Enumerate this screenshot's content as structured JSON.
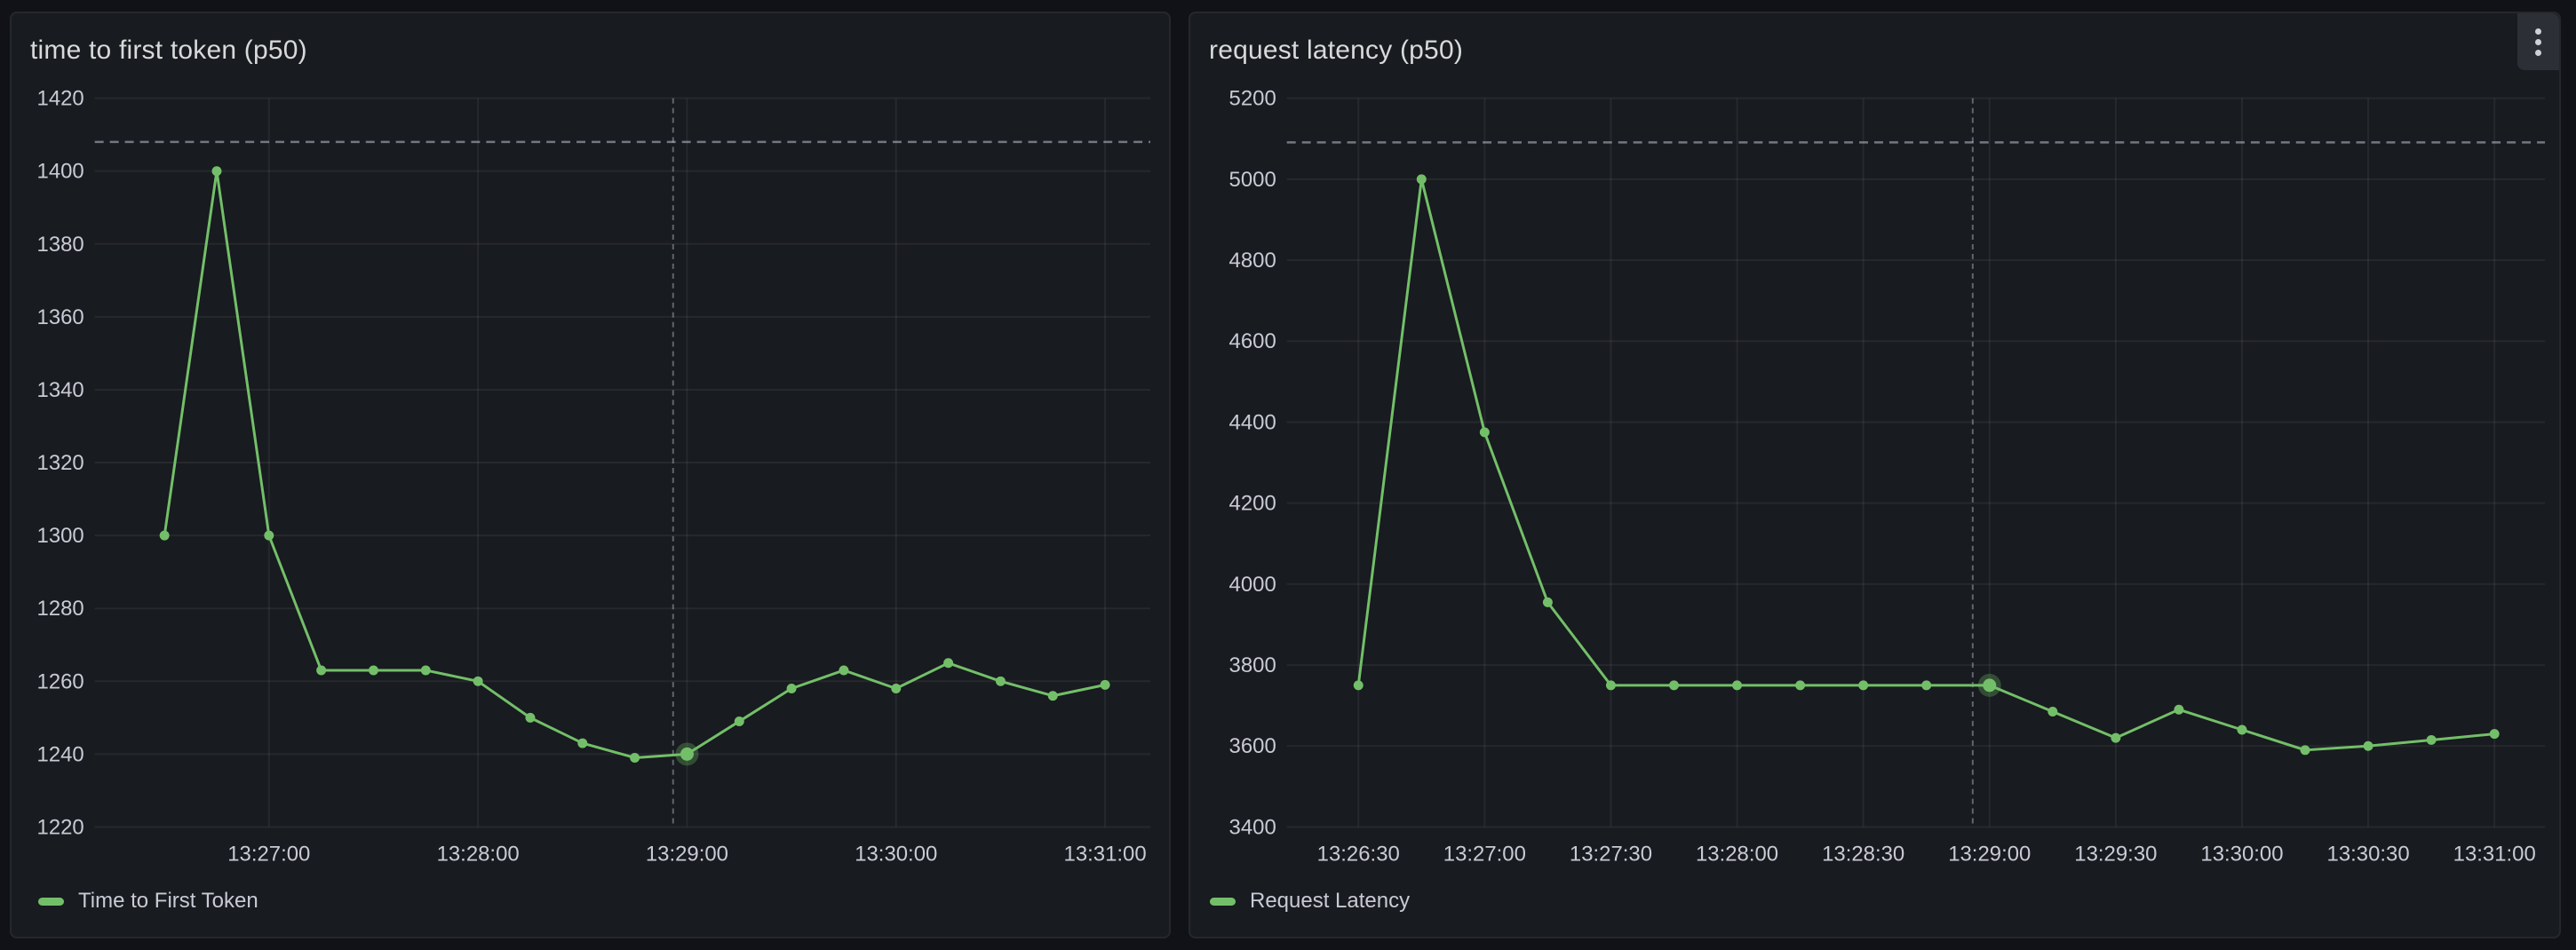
{
  "colors": {
    "page_background": "#111217",
    "panel_background": "#181b1f",
    "panel_border": "#25272c",
    "series_green": "#73BF69",
    "highlight_halo": "rgba(115,191,105,0.30)",
    "axis_label": "#c9cad6",
    "title_text": "#d8d9da"
  },
  "icons": {
    "panel_menu": "kebab-menu-icon"
  },
  "chart_data": [
    {
      "type": "line",
      "title": "time to first token (p50)",
      "xlabel": "",
      "ylabel": "",
      "ylim": [
        1220,
        1420
      ],
      "y_ticks": [
        1220,
        1240,
        1260,
        1280,
        1300,
        1320,
        1340,
        1360,
        1380,
        1400,
        1420
      ],
      "x_range": [
        "13:26:10",
        "13:31:13"
      ],
      "x_ticks": [
        "13:27:00",
        "13:28:00",
        "13:29:00",
        "13:30:00",
        "13:31:00"
      ],
      "grid": true,
      "legend_position": "bottom-left",
      "threshold": 1408,
      "crosshair_time": "13:28:56",
      "highlight_time": "13:29:00",
      "series": [
        {
          "name": "Time to First Token",
          "color": "#73BF69",
          "points": [
            [
              "13:26:30",
              1300
            ],
            [
              "13:26:45",
              1400
            ],
            [
              "13:27:00",
              1300
            ],
            [
              "13:27:15",
              1263
            ],
            [
              "13:27:30",
              1263
            ],
            [
              "13:27:45",
              1263
            ],
            [
              "13:28:00",
              1260
            ],
            [
              "13:28:15",
              1250
            ],
            [
              "13:28:30",
              1243
            ],
            [
              "13:28:45",
              1239
            ],
            [
              "13:29:00",
              1240
            ],
            [
              "13:29:15",
              1249
            ],
            [
              "13:29:30",
              1258
            ],
            [
              "13:29:45",
              1263
            ],
            [
              "13:30:00",
              1258
            ],
            [
              "13:30:15",
              1265
            ],
            [
              "13:30:30",
              1260
            ],
            [
              "13:30:45",
              1256
            ],
            [
              "13:31:00",
              1259
            ]
          ]
        }
      ]
    },
    {
      "type": "line",
      "title": "request latency (p50)",
      "xlabel": "",
      "ylabel": "",
      "ylim": [
        3400,
        5200
      ],
      "y_ticks": [
        3400,
        3600,
        3800,
        4000,
        4200,
        4400,
        4600,
        4800,
        5000,
        5200
      ],
      "x_range": [
        "13:26:13",
        "13:31:12"
      ],
      "x_ticks": [
        "13:26:30",
        "13:27:00",
        "13:27:30",
        "13:28:00",
        "13:28:30",
        "13:29:00",
        "13:29:30",
        "13:30:00",
        "13:30:30",
        "13:31:00"
      ],
      "grid": true,
      "legend_position": "bottom-left",
      "threshold": 5091,
      "crosshair_time": "13:28:56",
      "highlight_time": "13:29:00",
      "series": [
        {
          "name": "Request Latency",
          "color": "#73BF69",
          "points": [
            [
              "13:26:30",
              3750
            ],
            [
              "13:26:45",
              5000
            ],
            [
              "13:27:00",
              4375
            ],
            [
              "13:27:15",
              3955
            ],
            [
              "13:27:30",
              3750
            ],
            [
              "13:27:45",
              3750
            ],
            [
              "13:28:00",
              3750
            ],
            [
              "13:28:15",
              3750
            ],
            [
              "13:28:30",
              3750
            ],
            [
              "13:28:45",
              3750
            ],
            [
              "13:29:00",
              3750
            ],
            [
              "13:29:15",
              3685
            ],
            [
              "13:29:30",
              3620
            ],
            [
              "13:29:45",
              3690
            ],
            [
              "13:30:00",
              3640
            ],
            [
              "13:30:15",
              3590
            ],
            [
              "13:30:30",
              3600
            ],
            [
              "13:30:45",
              3615
            ],
            [
              "13:31:00",
              3630
            ]
          ]
        }
      ]
    }
  ]
}
